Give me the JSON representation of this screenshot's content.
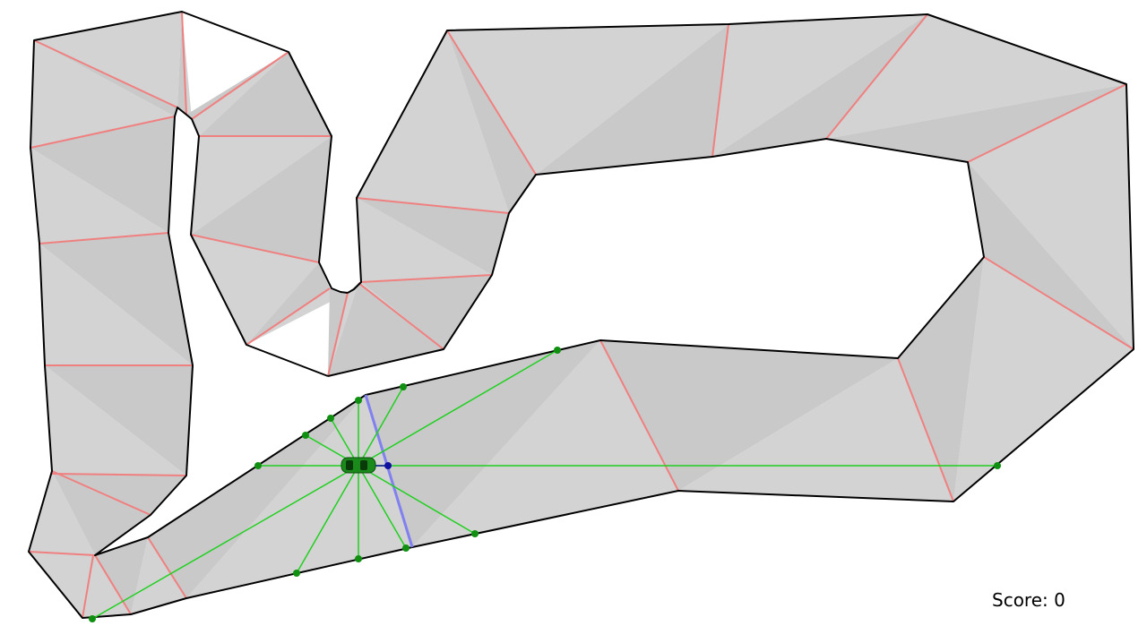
{
  "hud": {
    "score_label": "Score: 0"
  },
  "colors": {
    "background": "#ffffff",
    "track_fill": "#d3d3d3",
    "track_shade": "#c9c9c9",
    "track_border": "#000000",
    "checkpoint": "#f08080",
    "active_checkpoint": "#8080f0",
    "sensor_ray": "#20d020",
    "sensor_hit": "#109010",
    "car_body": "#1a8a1a",
    "car_heading": "#1010a0"
  },
  "icons": {
    "car": "car-icon",
    "heading": "heading-dot-icon"
  }
}
